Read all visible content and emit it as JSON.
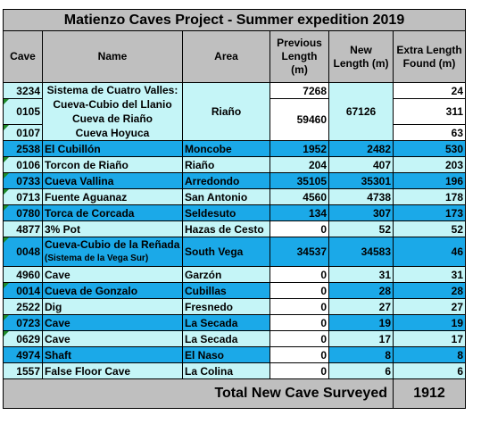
{
  "title": "Matienzo Caves Project - Summer expedition 2019",
  "headers": {
    "cave": "Cave",
    "name": "Name",
    "area": "Area",
    "previous": "Previous Length (m)",
    "new": "New Length (m)",
    "extra": "Extra Length Found (m)"
  },
  "group": {
    "caves": [
      "3234",
      "0105",
      "0107"
    ],
    "names": [
      "Sistema de Cuatro Valles:",
      "Cueva-Cubio del Llanio",
      "Cueva de Riaño",
      "Cueva Hoyuca"
    ],
    "area": "Riaño",
    "previous": [
      "7268",
      "59460"
    ],
    "new": "67126",
    "extra": [
      "24",
      "311",
      "63"
    ]
  },
  "rows": [
    {
      "cave": "2538",
      "name": "El Cubillón",
      "area": "Moncobe",
      "previous": "1952",
      "new": "2482",
      "extra": "530"
    },
    {
      "cave": "0106",
      "name": "Torcon de Riaño",
      "area": "Riaño",
      "previous": "204",
      "new": "407",
      "extra": "203"
    },
    {
      "cave": "0733",
      "name": "Cueva Vallina",
      "area": "Arredondo",
      "previous": "35105",
      "new": "35301",
      "extra": "196"
    },
    {
      "cave": "0713",
      "name": "Fuente Aguanaz",
      "area": "San Antonio",
      "previous": "4560",
      "new": "4738",
      "extra": "178"
    },
    {
      "cave": "0780",
      "name": "Torca de Corcada",
      "area": "Seldesuto",
      "previous": "134",
      "new": "307",
      "extra": "173"
    },
    {
      "cave": "4877",
      "name": "3% Pot",
      "area": "Hazas de Cesto",
      "previous": "0",
      "new": "52",
      "extra": "52"
    },
    {
      "cave": "0048",
      "name": "Cueva-Cubio de la Reñada",
      "name_sub": "(Sistema de la Vega Sur)",
      "area": "South Vega",
      "previous": "34537",
      "new": "34583",
      "extra": "46"
    },
    {
      "cave": "4960",
      "name": "Cave",
      "area": "Garzón",
      "previous": "0",
      "new": "31",
      "extra": "31"
    },
    {
      "cave": "0014",
      "name": "Cueva de Gonzalo",
      "area": "Cubillas",
      "previous": "0",
      "new": "28",
      "extra": "28"
    },
    {
      "cave": "2522",
      "name": "Dig",
      "area": "Fresnedo",
      "previous": "0",
      "new": "27",
      "extra": "27"
    },
    {
      "cave": "0723",
      "name": "Cave",
      "area": "La Secada",
      "previous": "0",
      "new": "19",
      "extra": "19"
    },
    {
      "cave": "0629",
      "name": "Cave",
      "area": "La Secada",
      "previous": "0",
      "new": "17",
      "extra": "17"
    },
    {
      "cave": "4974",
      "name": "Shaft",
      "area": "El Naso",
      "previous": "0",
      "new": "8",
      "extra": "8"
    },
    {
      "cave": "1557",
      "name": "False Floor Cave",
      "area": "La Colina",
      "previous": "0",
      "new": "6",
      "extra": "6"
    }
  ],
  "total": {
    "label": "Total New Cave Surveyed",
    "value": "1912"
  }
}
